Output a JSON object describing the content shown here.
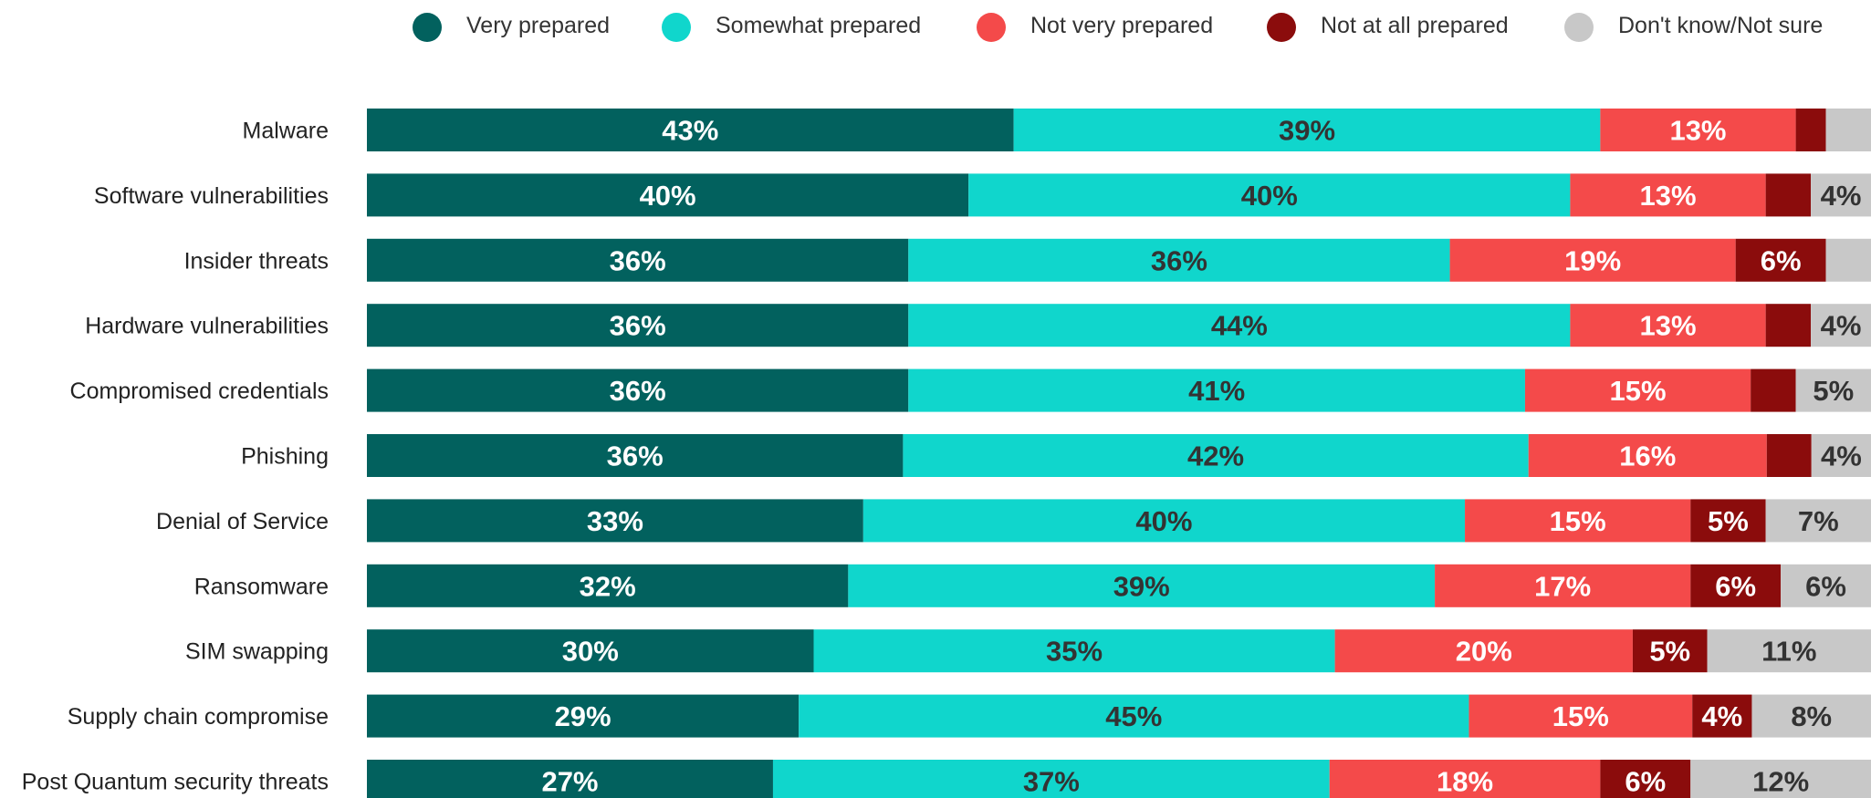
{
  "chart_data": {
    "type": "bar",
    "orientation": "horizontal",
    "stacked": true,
    "title": "",
    "legend_position": "top",
    "categories": [
      "Malware",
      "Software vulnerabilities",
      "Insider threats",
      "Hardware vulnerabilities",
      "Compromised credentials",
      "Phishing",
      "Denial of Service",
      "Ransomware",
      "SIM swapping",
      "Supply chain compromise",
      "Post Quantum security threats"
    ],
    "series": [
      {
        "name": "Very prepared",
        "color": "#02615E",
        "label_color": "#ffffff",
        "values": [
          43,
          40,
          36,
          36,
          36,
          36,
          33,
          32,
          30,
          29,
          27
        ]
      },
      {
        "name": "Somewhat prepared",
        "color": "#10D6CC",
        "label_color": "#333333",
        "values": [
          39,
          40,
          36,
          44,
          41,
          42,
          40,
          39,
          35,
          45,
          37
        ]
      },
      {
        "name": "Not very prepared",
        "color": "#F44A4A",
        "label_color": "#ffffff",
        "values": [
          13,
          13,
          19,
          13,
          15,
          16,
          15,
          17,
          20,
          15,
          18
        ]
      },
      {
        "name": "Not at all prepared",
        "color": "#8B0C0C",
        "label_color": "#ffffff",
        "values": [
          2,
          3,
          6,
          3,
          3,
          3,
          5,
          6,
          5,
          4,
          6
        ]
      },
      {
        "name": "Don't know/Not sure",
        "color": "#C8C8C8",
        "label_color": "#333333",
        "values": [
          3,
          4,
          3,
          4,
          5,
          4,
          7,
          6,
          11,
          8,
          12
        ]
      }
    ],
    "data_labels": [
      [
        "43%",
        "39%",
        "13%",
        "",
        ""
      ],
      [
        "40%",
        "40%",
        "13%",
        "",
        "4%"
      ],
      [
        "36%",
        "36%",
        "19%",
        "6%",
        ""
      ],
      [
        "36%",
        "44%",
        "13%",
        "",
        "4%"
      ],
      [
        "36%",
        "41%",
        "15%",
        "",
        "5%"
      ],
      [
        "36%",
        "42%",
        "16%",
        "",
        "4%"
      ],
      [
        "33%",
        "40%",
        "15%",
        "5%",
        "7%"
      ],
      [
        "32%",
        "39%",
        "17%",
        "6%",
        "6%"
      ],
      [
        "30%",
        "35%",
        "20%",
        "5%",
        "11%"
      ],
      [
        "29%",
        "45%",
        "15%",
        "4%",
        "8%"
      ],
      [
        "27%",
        "37%",
        "18%",
        "6%",
        "12%"
      ]
    ]
  }
}
